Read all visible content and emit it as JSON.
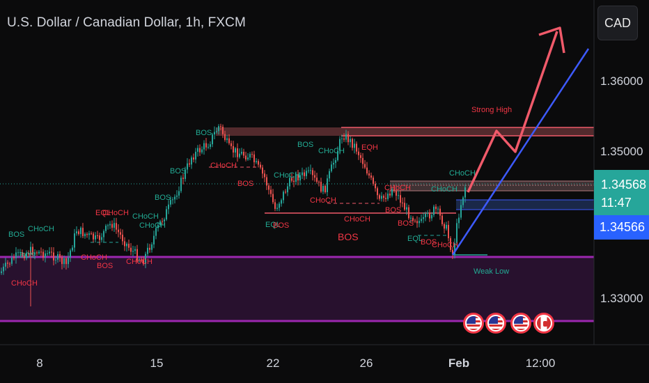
{
  "header": {
    "title": "U.S. Dollar / Canadian Dollar, 1h, FXCM",
    "currency_button": "CAD"
  },
  "price_axis": {
    "ticks": [
      "1.36000",
      "1.35000",
      "1.33000"
    ],
    "current_price": "1.34568",
    "countdown": "11:47",
    "bid_price": "1.34566"
  },
  "time_axis": {
    "ticks": [
      "8",
      "15",
      "22",
      "26",
      "Feb",
      "12:00"
    ]
  },
  "annotations": {
    "strong_high": "Strong High",
    "weak_low": "Weak Low",
    "big_bos": "BOS",
    "labels": [
      {
        "text": "BOS",
        "color": "green"
      },
      {
        "text": "CHoCH",
        "color": "green"
      },
      {
        "text": "CHoCH",
        "color": "red"
      },
      {
        "text": "BOS",
        "color": "green"
      },
      {
        "text": "EQL",
        "color": "red"
      },
      {
        "text": "CHoCH",
        "color": "red"
      },
      {
        "text": "CHoCH",
        "color": "green"
      },
      {
        "text": "CHoCH",
        "color": "red"
      },
      {
        "text": "BOS",
        "color": "red"
      },
      {
        "text": "CHoCH",
        "color": "red"
      },
      {
        "text": "CHoCH",
        "color": "green"
      },
      {
        "text": "BOS",
        "color": "green"
      },
      {
        "text": "BOS",
        "color": "green"
      },
      {
        "text": "BOS",
        "color": "green"
      },
      {
        "text": "CHoCH",
        "color": "red"
      },
      {
        "text": "BOS",
        "color": "red"
      },
      {
        "text": "BOS",
        "color": "green"
      },
      {
        "text": "CHoCH",
        "color": "green"
      },
      {
        "text": "CHoCH",
        "color": "green"
      },
      {
        "text": "EQL",
        "color": "green"
      },
      {
        "text": "BOS",
        "color": "red"
      },
      {
        "text": "CHoCH",
        "color": "red"
      },
      {
        "text": "CHoCH",
        "color": "red"
      },
      {
        "text": "EQH",
        "color": "red"
      },
      {
        "text": "BOS",
        "color": "red"
      },
      {
        "text": "CHoCH",
        "color": "red"
      },
      {
        "text": "BOS",
        "color": "red"
      },
      {
        "text": "CHoCH",
        "color": "green"
      },
      {
        "text": "CHoCH",
        "color": "green"
      },
      {
        "text": "EQL",
        "color": "green"
      },
      {
        "text": "BOS",
        "color": "red"
      },
      {
        "text": "CHoCH",
        "color": "red"
      }
    ]
  },
  "events": {
    "flags": [
      "us",
      "us",
      "us",
      "ca"
    ]
  },
  "colors": {
    "background": "#0b0b0c",
    "up": "#26a69a",
    "down": "#ef5350",
    "zone_purple": "#9c27b0",
    "projection": "#f05a6a",
    "trendline": "#3d5afe",
    "bid": "#2962ff"
  }
}
